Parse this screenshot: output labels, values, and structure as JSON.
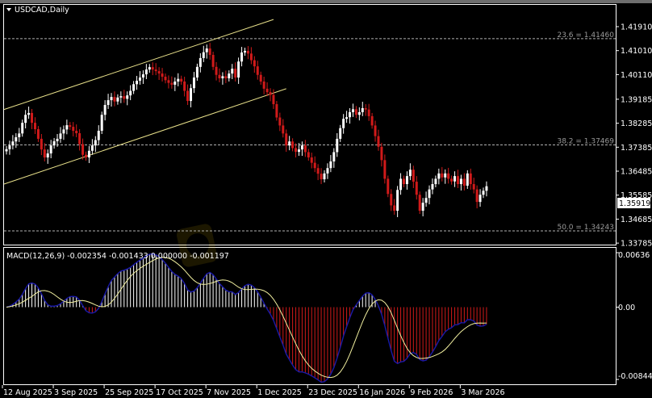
{
  "header": {
    "title": "USDCAD,Daily",
    "menu_icon": "triangle-down-icon"
  },
  "macd_label": "MACD(12,26,9) -0.002354 -0.001433 0.000000 -0.001197",
  "current_price": "1.35919",
  "colors": {
    "background": "#000000",
    "bull": "#ffffff",
    "bear": "#d11a1a",
    "channel": "#e8e08a",
    "fib": "#b0b0b0",
    "macd_main": "#1a1aa8",
    "macd_signal": "#f2f0a0"
  },
  "chart_data": [
    {
      "type": "candlestick",
      "symbol": "USDCAD",
      "timeframe": "Daily",
      "start_date": "12 Aug 2025",
      "price_ticks": [
        "1.41910",
        "1.41010",
        "1.40110",
        "1.39185",
        "1.38285",
        "1.37385",
        "1.36485",
        "1.35585",
        "1.34685",
        "1.33785"
      ],
      "ylim": [
        1.33785,
        1.4191
      ],
      "date_ticks": [
        "12 Aug 2025",
        "3 Sep 2025",
        "25 Sep 2025",
        "17 Oct 2025",
        "7 Nov 2025",
        "1 Dec 2025",
        "23 Dec 2025",
        "16 Jan 2026",
        "9 Feb 2026",
        "3 Mar 2026"
      ],
      "closes": [
        1.3731,
        1.3745,
        1.376,
        1.3776,
        1.379,
        1.383,
        1.386,
        1.3867,
        1.383,
        1.3806,
        1.377,
        1.373,
        1.37,
        1.3715,
        1.3745,
        1.3761,
        1.377,
        1.379,
        1.3805,
        1.3821,
        1.3815,
        1.38,
        1.3791,
        1.375,
        1.371,
        1.37,
        1.3725,
        1.3745,
        1.3765,
        1.38,
        1.386,
        1.3897,
        1.3915,
        1.3927,
        1.391,
        1.3925,
        1.393,
        1.392,
        1.3933,
        1.395,
        1.3975,
        1.3988,
        1.4,
        1.4012,
        1.403,
        1.4039,
        1.403,
        1.4024,
        1.4015,
        1.4003,
        1.399,
        1.398,
        1.3973,
        1.3985,
        1.3995,
        1.3985,
        1.395,
        1.3912,
        1.396,
        1.4,
        1.404,
        1.4073,
        1.4095,
        1.4109,
        1.4085,
        1.404,
        1.401,
        1.3997,
        1.4005,
        1.3997,
        1.4015,
        1.4033,
        1.4,
        1.406,
        1.4094,
        1.41,
        1.409,
        1.4065,
        1.4042,
        1.401,
        1.3985,
        1.3958,
        1.3945,
        1.3935,
        1.39,
        1.385,
        1.382,
        1.379,
        1.3745,
        1.376,
        1.3735,
        1.3721,
        1.373,
        1.3745,
        1.372,
        1.37,
        1.368,
        1.366,
        1.3639,
        1.3618,
        1.364,
        1.366,
        1.3685,
        1.372,
        1.377,
        1.381,
        1.3845,
        1.3851,
        1.387,
        1.3881,
        1.386,
        1.387,
        1.3885,
        1.388,
        1.3855,
        1.382,
        1.378,
        1.374,
        1.369,
        1.362,
        1.3563,
        1.352,
        1.35,
        1.3578,
        1.362,
        1.36,
        1.363,
        1.3654,
        1.3609,
        1.356,
        1.35,
        1.353,
        1.3548,
        1.358,
        1.36,
        1.362,
        1.364,
        1.3625,
        1.364,
        1.362,
        1.361,
        1.363,
        1.36,
        1.362,
        1.3594,
        1.364,
        1.36,
        1.358,
        1.3533,
        1.356,
        1.3575,
        1.35919
      ],
      "fib_levels": [
        {
          "label": "23.6 = 1.41460",
          "price": 1.4146
        },
        {
          "label": "38.2 = 1.37469",
          "price": 1.37469
        },
        {
          "label": "50.0 = 1.34243",
          "price": 1.34243
        }
      ],
      "channel": {
        "upper": [
          {
            "date": "12 Aug 2025",
            "price": 1.388
          },
          {
            "date": "8 Dec 2025",
            "price": 1.4218
          }
        ],
        "lower": [
          {
            "date": "12 Aug 2025",
            "price": 1.36
          },
          {
            "date": "12 Dec 2025",
            "price": 1.3958
          }
        ]
      }
    },
    {
      "type": "macd",
      "params": [
        12,
        26,
        9
      ],
      "ticks": [
        "0.00636",
        "0.00",
        "-0.008441"
      ],
      "ylim": [
        -0.008441,
        0.00636
      ]
    }
  ]
}
